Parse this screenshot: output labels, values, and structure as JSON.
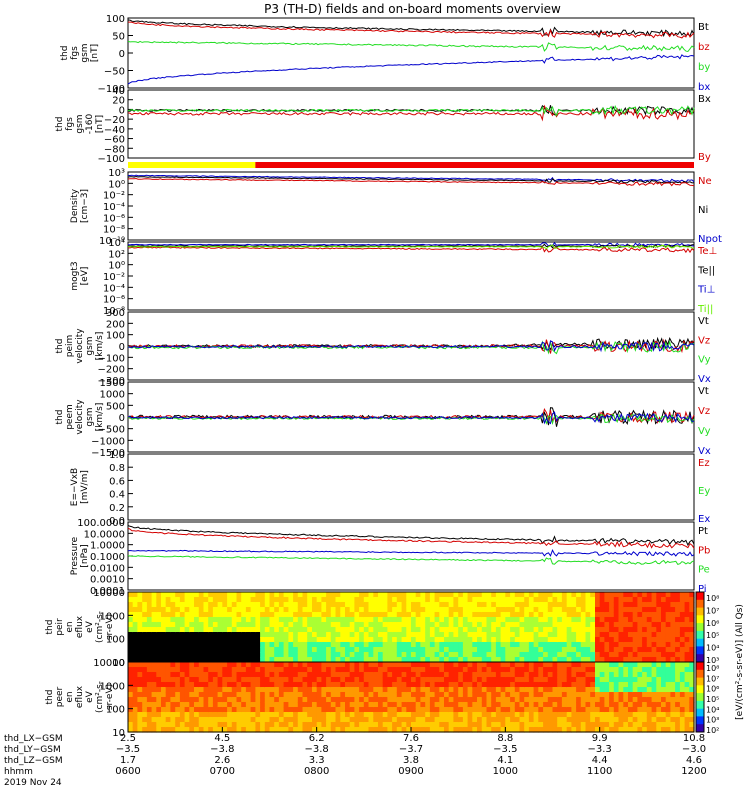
{
  "title": "P3 (TH-D) fields and on-board moments overview",
  "date_label": "2019 Nov 24",
  "colors": {
    "black": "#000000",
    "red": "#d40000",
    "green": "#22dd22",
    "blue": "#0000cc",
    "yellow": "#ffff00",
    "lightgreen": "#66ee00"
  },
  "chart_data": [
    {
      "type": "line",
      "ylabel": [
        "thd",
        "fgs",
        "gsm",
        "[nT]"
      ],
      "yticks": [
        "100",
        "50",
        "0",
        "−50",
        "−100"
      ],
      "ylim": [
        -100,
        100
      ],
      "legend": [
        "Bt",
        "bz",
        "by",
        "bx"
      ],
      "legend_colors": [
        "black",
        "red",
        "green",
        "blue"
      ]
    },
    {
      "type": "line",
      "ylabel": [
        "thd",
        "fgs",
        "gsm",
        "-160",
        "[nT]"
      ],
      "yticks": [
        "40",
        "20",
        "0",
        "−20",
        "−40",
        "−60",
        "−80",
        "−100"
      ],
      "ylim": [
        -100,
        40
      ],
      "legend": [
        "Bx",
        "By"
      ],
      "legend_colors": [
        "black",
        "red"
      ]
    },
    {
      "type": "line",
      "ylabel": [
        "Density",
        "[cm−3]"
      ],
      "yticks": [
        "10³",
        "10⁰",
        "10⁻²",
        "10⁻⁴",
        "10⁻⁶",
        "10⁻⁸",
        "10⁻¹⁰"
      ],
      "scale": "log",
      "legend": [
        "Ne",
        "Ni",
        "Npot"
      ],
      "legend_colors": [
        "red",
        "black",
        "blue"
      ]
    },
    {
      "type": "line",
      "ylabel": [
        "mogt3",
        "[eV]"
      ],
      "yticks": [
        "10⁴",
        "10²",
        "10⁰",
        "10⁻²",
        "10⁻⁴",
        "10⁻⁶",
        "10⁻⁸"
      ],
      "scale": "log",
      "legend": [
        "Te⊥",
        "Te||",
        "Ti⊥",
        "Ti||"
      ],
      "legend_colors": [
        "red",
        "black",
        "blue",
        "lightgreen"
      ]
    },
    {
      "type": "line",
      "ylabel": [
        "thd",
        "peim",
        "velocity",
        "gsm",
        "[km/s]"
      ],
      "yticks": [
        "300",
        "200",
        "100",
        "0",
        "−100",
        "−200",
        "−300"
      ],
      "ylim": [
        -300,
        300
      ],
      "legend": [
        "Vt",
        "Vz",
        "Vy",
        "Vx"
      ],
      "legend_colors": [
        "black",
        "red",
        "green",
        "blue"
      ]
    },
    {
      "type": "line",
      "ylabel": [
        "thd",
        "peem",
        "velocity",
        "gsm",
        "[km/s]"
      ],
      "yticks": [
        "1500",
        "1000",
        "500",
        "0",
        "−500",
        "−1000",
        "−1500"
      ],
      "ylim": [
        -1500,
        1500
      ],
      "legend": [
        "Vt",
        "Vz",
        "Vy",
        "Vx"
      ],
      "legend_colors": [
        "black",
        "red",
        "green",
        "blue"
      ]
    },
    {
      "type": "line",
      "ylabel": [
        "E=−VxB",
        "[mV/m]"
      ],
      "yticks": [
        "1.0",
        "0.8",
        "0.6",
        "0.4",
        "0.2",
        "0.0"
      ],
      "ylim": [
        0,
        1
      ],
      "legend": [
        "Ez",
        "Ey",
        "Ex"
      ],
      "legend_colors": [
        "red",
        "green",
        "blue"
      ]
    },
    {
      "type": "line",
      "ylabel": [
        "Pressure",
        "[nPa]"
      ],
      "yticks": [
        "100.0000",
        "10.0000",
        "1.0000",
        "0.1000",
        "0.0100",
        "0.0010",
        "0.0001"
      ],
      "scale": "log",
      "legend": [
        "Pt",
        "Pb",
        "Pe",
        "Pi"
      ],
      "legend_colors": [
        "black",
        "red",
        "green",
        "blue"
      ]
    },
    {
      "type": "heatmap",
      "ylabel": [
        "thd",
        "peir",
        "en",
        "eflux",
        "eV",
        "(cm²-s-",
        "sr-eV)"
      ],
      "yticks": [
        "10000",
        "1000",
        "100",
        "10"
      ],
      "scale": "log"
    },
    {
      "type": "heatmap",
      "ylabel": [
        "thd",
        "peer",
        "en",
        "eflux",
        "eV",
        "(cm²-s-",
        "sr-eV)"
      ],
      "yticks": [
        "10000",
        "1000",
        "100",
        "10"
      ],
      "scale": "log"
    }
  ],
  "colorbars": [
    {
      "ticks": [
        "10⁸",
        "10⁷",
        "10⁶",
        "10⁵",
        "10⁴",
        "10³"
      ]
    },
    {
      "ticks": [
        "10⁸",
        "10⁷",
        "10⁶",
        "10⁵",
        "10⁴",
        "10³",
        "10²"
      ]
    }
  ],
  "colorbar_label": "[eV/(cm²-s-sr-eV)] (All Qs)",
  "x_axis": {
    "row_labels": [
      "thd_LX−GSM",
      "thd_LY−GSM",
      "thd_LZ−GSM",
      "hhmm"
    ],
    "columns": [
      {
        "x": "2.5",
        "y": "−3.5",
        "z": "1.7",
        "t": "0600"
      },
      {
        "x": "4.5",
        "y": "−3.8",
        "z": "2.6",
        "t": "0700"
      },
      {
        "x": "6.2",
        "y": "−3.8",
        "z": "3.3",
        "t": "0800"
      },
      {
        "x": "7.6",
        "y": "−3.7",
        "z": "3.8",
        "t": "0900"
      },
      {
        "x": "8.8",
        "y": "−3.5",
        "z": "4.1",
        "t": "1000"
      },
      {
        "x": "9.9",
        "y": "−3.3",
        "z": "4.4",
        "t": "1100"
      },
      {
        "x": "10.8",
        "y": "−3.0",
        "z": "4.6",
        "t": "1200"
      }
    ]
  }
}
